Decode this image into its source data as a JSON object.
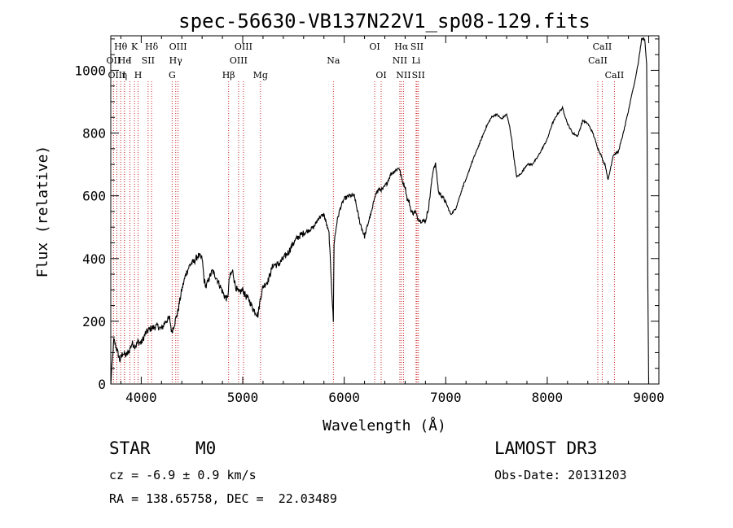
{
  "chart_data": {
    "type": "line",
    "title": "spec-56630-VB137N22V1_sp08-129.fits",
    "xlabel": "Wavelength (Å)",
    "ylabel": "Flux (relative)",
    "xlim": [
      3700,
      9100
    ],
    "ylim": [
      0,
      1110
    ],
    "x_ticks": [
      4000,
      5000,
      6000,
      7000,
      8000,
      9000
    ],
    "y_ticks": [
      0,
      200,
      400,
      600,
      800,
      1000
    ],
    "series": [
      {
        "name": "flux",
        "x": [
          3700,
          3730,
          3760,
          3790,
          3820,
          3850,
          3880,
          3910,
          3940,
          3970,
          4000,
          4040,
          4080,
          4120,
          4160,
          4200,
          4240,
          4280,
          4300,
          4320,
          4360,
          4400,
          4440,
          4480,
          4520,
          4560,
          4600,
          4620,
          4640,
          4660,
          4700,
          4740,
          4780,
          4820,
          4850,
          4870,
          4900,
          4930,
          4960,
          5000,
          5030,
          5060,
          5100,
          5150,
          5175,
          5200,
          5250,
          5300,
          5350,
          5400,
          5450,
          5500,
          5550,
          5600,
          5650,
          5700,
          5750,
          5800,
          5850,
          5880,
          5893,
          5900,
          5930,
          5960,
          6000,
          6050,
          6100,
          6150,
          6200,
          6250,
          6280,
          6300,
          6340,
          6380,
          6420,
          6460,
          6500,
          6540,
          6563,
          6580,
          6600,
          6620,
          6640,
          6660,
          6680,
          6700,
          6720,
          6750,
          6800,
          6830,
          6860,
          6880,
          6900,
          6930,
          6960,
          7000,
          7050,
          7100,
          7120,
          7150,
          7180,
          7200,
          7250,
          7300,
          7350,
          7400,
          7450,
          7500,
          7550,
          7600,
          7630,
          7650,
          7680,
          7700,
          7740,
          7800,
          7850,
          7900,
          7950,
          8000,
          8050,
          8100,
          8150,
          8200,
          8250,
          8300,
          8350,
          8400,
          8450,
          8500,
          8530,
          8550,
          8570,
          8600,
          8650,
          8700,
          8750,
          8800,
          8830,
          8860,
          8900,
          8930,
          8960,
          8980,
          8990,
          9000
        ],
        "values": [
          0,
          140,
          110,
          75,
          100,
          90,
          105,
          130,
          120,
          135,
          130,
          160,
          175,
          180,
          185,
          175,
          200,
          210,
          165,
          185,
          230,
          300,
          350,
          380,
          390,
          410,
          400,
          330,
          310,
          330,
          360,
          340,
          310,
          280,
          270,
          340,
          360,
          310,
          290,
          300,
          280,
          270,
          240,
          220,
          275,
          310,
          330,
          380,
          380,
          400,
          420,
          450,
          470,
          480,
          490,
          500,
          530,
          540,
          480,
          280,
          200,
          450,
          520,
          560,
          590,
          600,
          600,
          520,
          470,
          530,
          560,
          600,
          620,
          620,
          640,
          670,
          680,
          690,
          660,
          640,
          630,
          590,
          580,
          550,
          545,
          550,
          530,
          520,
          520,
          560,
          640,
          690,
          700,
          610,
          600,
          580,
          540,
          560,
          580,
          610,
          640,
          650,
          700,
          740,
          780,
          820,
          850,
          860,
          845,
          860,
          820,
          780,
          700,
          660,
          670,
          700,
          700,
          720,
          750,
          780,
          830,
          860,
          880,
          830,
          800,
          790,
          840,
          830,
          800,
          750,
          730,
          710,
          700,
          650,
          730,
          740,
          800,
          870,
          920,
          960,
          1030,
          1100,
          1100,
          1020,
          350,
          0
        ],
        "color": "#000000"
      }
    ],
    "line_markers": [
      {
        "label": "Hθ",
        "row": 1,
        "wavelength": 3798
      },
      {
        "label": "OII",
        "row": 2,
        "wavelength": 3727
      },
      {
        "label": "OIII",
        "row": 3,
        "wavelength": 3760
      },
      {
        "label": "He",
        "row": 2,
        "wavelength": 3835
      },
      {
        "label": "η",
        "row": 3,
        "wavelength": 3835
      },
      {
        "label": "K",
        "row": 1,
        "wavelength": 3934
      },
      {
        "label": "I",
        "row": 2,
        "wavelength": 3889
      },
      {
        "label": "SII",
        "row": 2,
        "wavelength": 4068
      },
      {
        "label": "H",
        "row": 3,
        "wavelength": 3969
      },
      {
        "label": "Hδ",
        "row": 1,
        "wavelength": 4102
      },
      {
        "label": "OIII",
        "row": 1,
        "wavelength": 4363
      },
      {
        "label": "Hγ",
        "row": 2,
        "wavelength": 4340
      },
      {
        "label": "G",
        "row": 3,
        "wavelength": 4305
      },
      {
        "label": "OIII",
        "row": 1,
        "wavelength": 5007
      },
      {
        "label": "OIII",
        "row": 2,
        "wavelength": 4959
      },
      {
        "label": "Hβ",
        "row": 3,
        "wavelength": 4861
      },
      {
        "label": "Mg",
        "row": 3,
        "wavelength": 5175
      },
      {
        "label": "Na",
        "row": 2,
        "wavelength": 5893
      },
      {
        "label": "OI",
        "row": 1,
        "wavelength": 6300
      },
      {
        "label": "OI",
        "row": 3,
        "wavelength": 6364
      },
      {
        "label": "Hα",
        "row": 1,
        "wavelength": 6563
      },
      {
        "label": "SII",
        "row": 1,
        "wavelength": 6717
      },
      {
        "label": "NII",
        "row": 2,
        "wavelength": 6548
      },
      {
        "label": "Li",
        "row": 2,
        "wavelength": 6708
      },
      {
        "label": "NII",
        "row": 3,
        "wavelength": 6584
      },
      {
        "label": "SII",
        "row": 3,
        "wavelength": 6731
      },
      {
        "label": "CaII",
        "row": 1,
        "wavelength": 8542
      },
      {
        "label": "CaII",
        "row": 2,
        "wavelength": 8498
      },
      {
        "label": "CaII",
        "row": 3,
        "wavelength": 8662
      }
    ]
  },
  "info": {
    "object_class": "STAR",
    "subclass": "M0",
    "cz_line": "cz = -6.9 ± 0.9 km/s",
    "coords_line": "RA = 138.65758, DEC =  22.03489",
    "survey": "LAMOST DR3",
    "obs_date_line": "Obs-Date: 20131203"
  }
}
